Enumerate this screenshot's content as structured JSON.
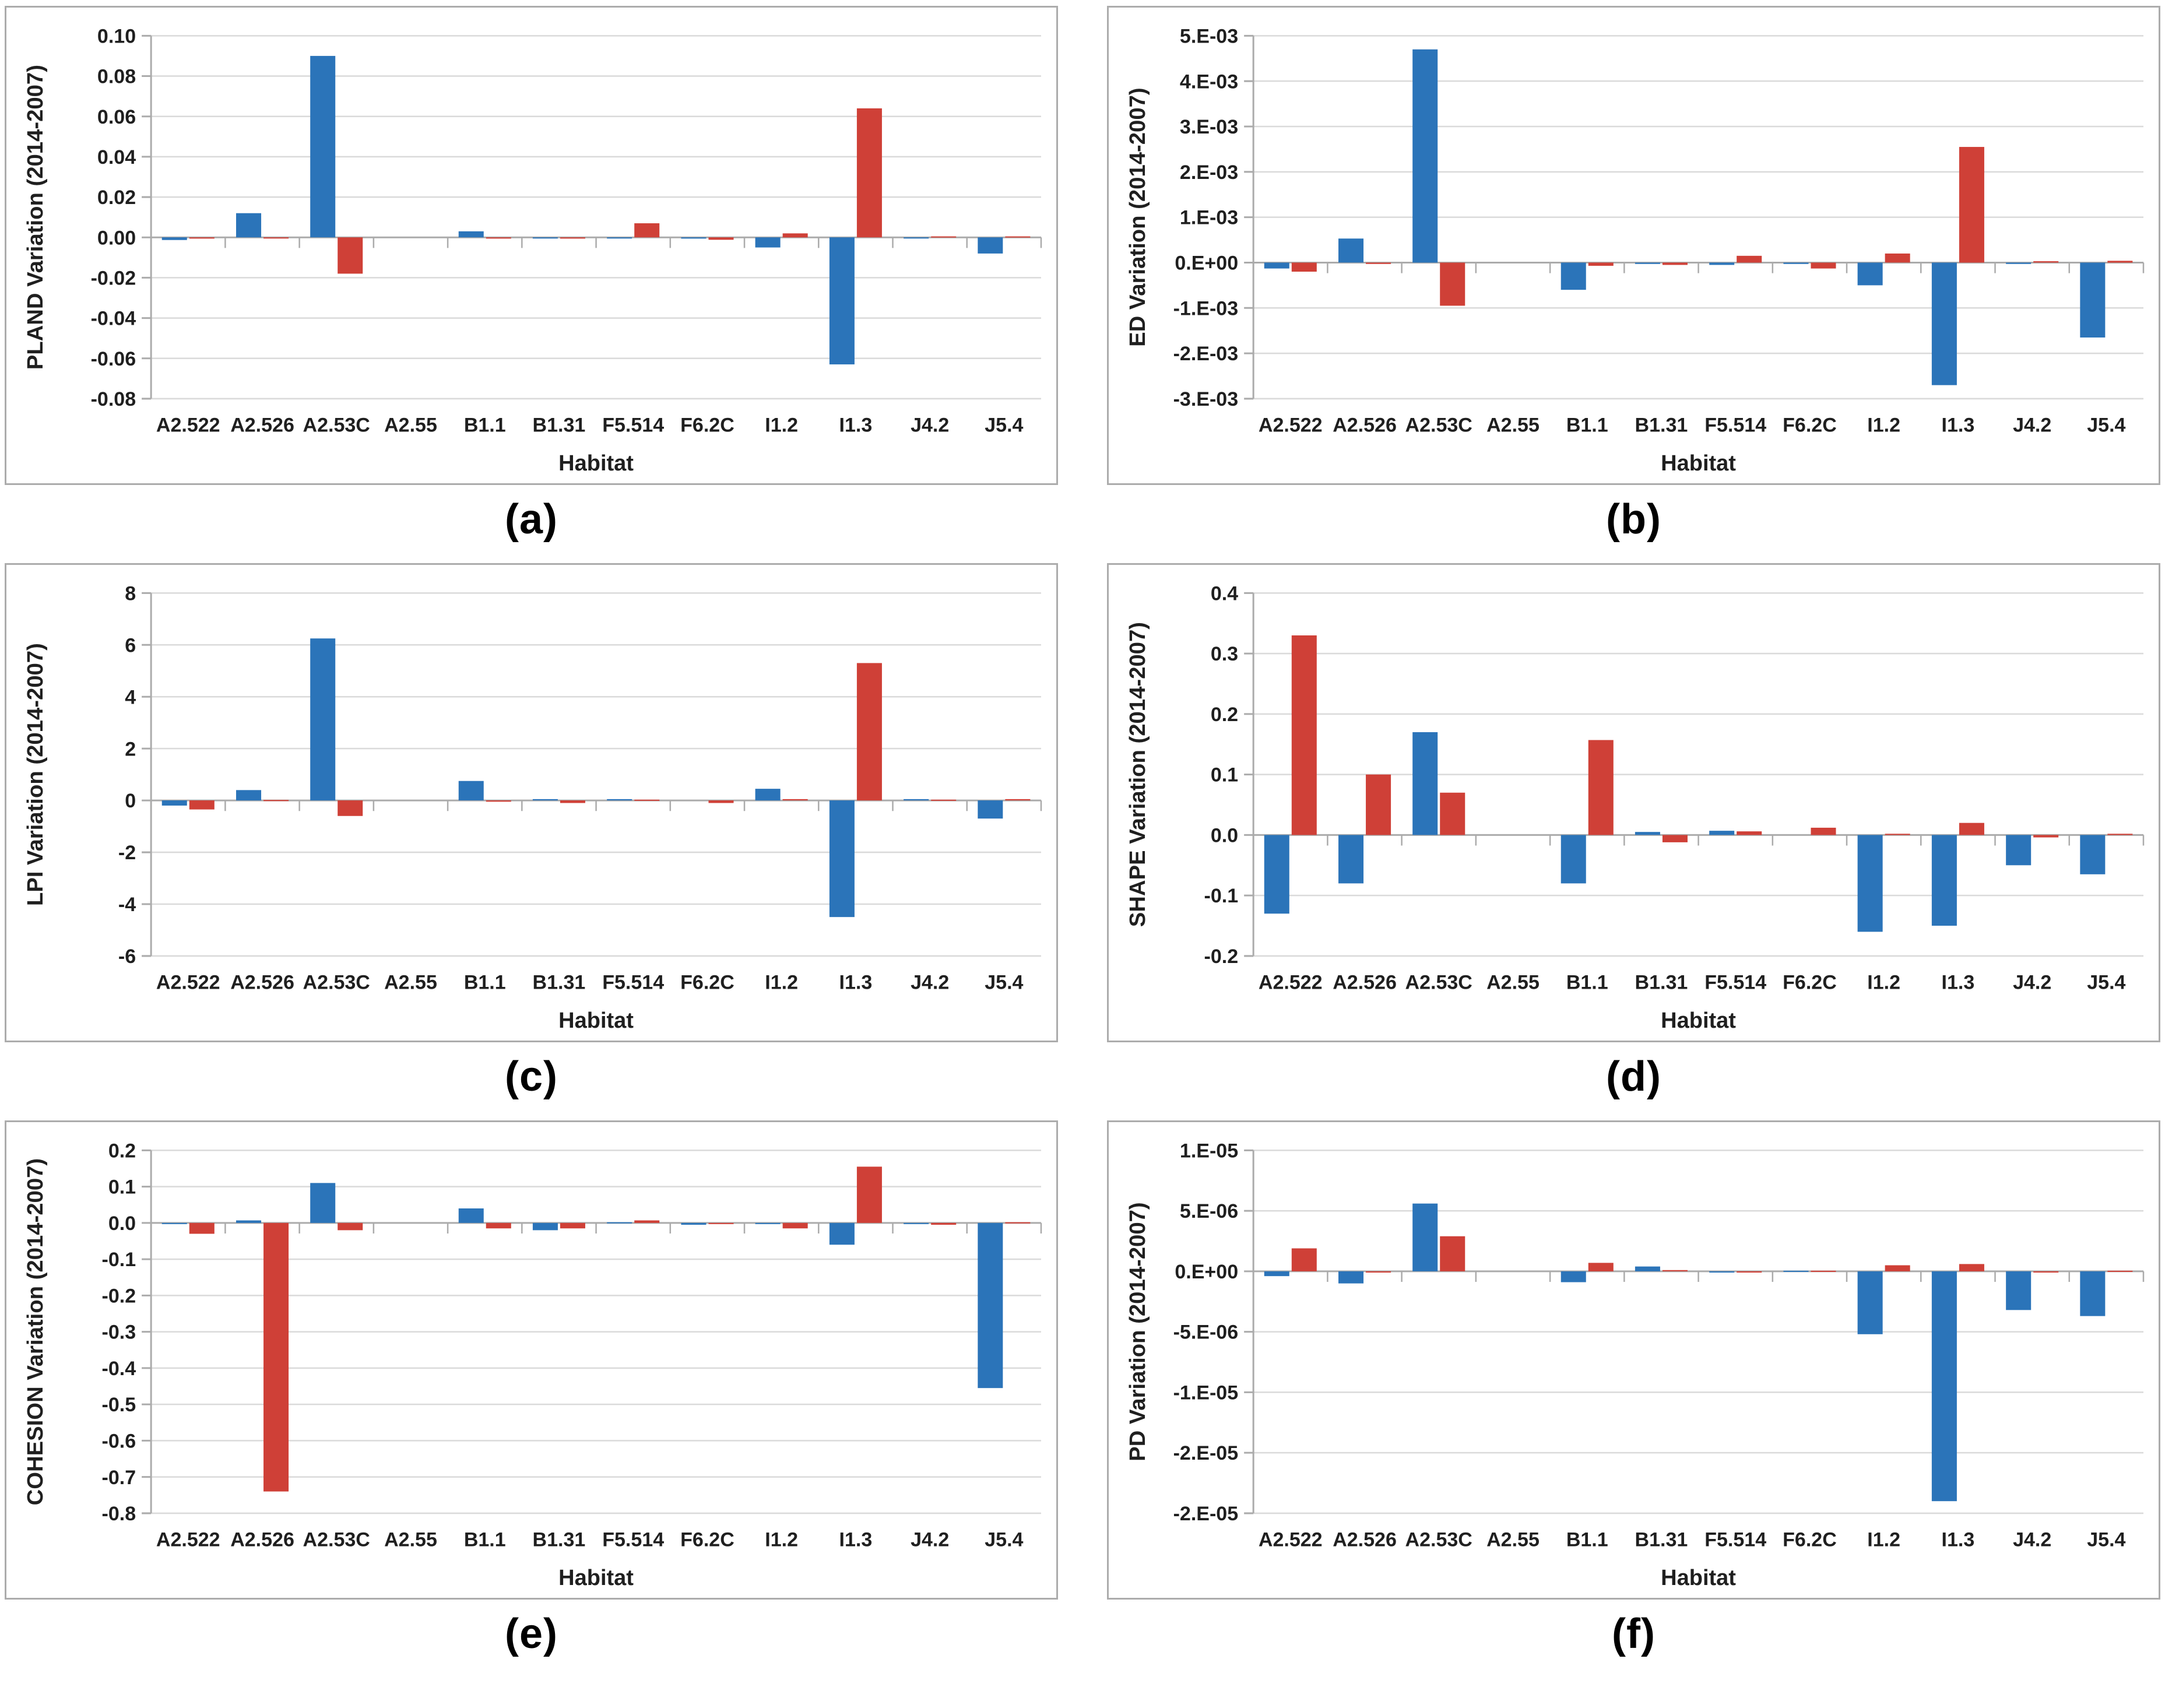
{
  "style": {
    "series_blue": "#2B74B9",
    "series_red": "#CF4037",
    "grid_color": "#DADADA",
    "axis_color": "#ABABAB",
    "text_color": "#1F1F1F",
    "card_border_color": "#ACACAC",
    "background": "#FFFFFF"
  },
  "chart_data": [
    {
      "panel": "(a)",
      "type": "bar",
      "title": "",
      "ylabel": "PLAND Variation (2014-2007)",
      "xlabel": "Habitat",
      "categories": [
        "A2.522",
        "A2.526",
        "A2.53C",
        "A2.55",
        "B1.1",
        "B1.31",
        "F5.514",
        "F6.2C",
        "I1.2",
        "I1.3",
        "J4.2",
        "J5.4"
      ],
      "series": [
        {
          "name": "blue",
          "color": "#2B74B9",
          "values": [
            -0.0013,
            0.012,
            0.09,
            0,
            0.003,
            -0.0003,
            -0.0003,
            -0.0006,
            -0.005,
            -0.063,
            -0.0003,
            -0.008
          ]
        },
        {
          "name": "red",
          "color": "#CF4037",
          "values": [
            -0.0006,
            -0.0002,
            -0.018,
            0,
            -0.0006,
            -0.0006,
            0.007,
            -0.0012,
            0.002,
            0.064,
            0.0005,
            0.0005
          ]
        }
      ],
      "ylim": [
        -0.08,
        0.1
      ],
      "yticks": [
        {
          "v": 0.1,
          "label": "0.10"
        },
        {
          "v": 0.08,
          "label": "0.08"
        },
        {
          "v": 0.06,
          "label": "0.06"
        },
        {
          "v": 0.04,
          "label": "0.04"
        },
        {
          "v": 0.02,
          "label": "0.02"
        },
        {
          "v": 0.0,
          "label": "0.00"
        },
        {
          "v": -0.02,
          "label": "-0.02"
        },
        {
          "v": -0.04,
          "label": "-0.04"
        },
        {
          "v": -0.06,
          "label": "-0.06"
        },
        {
          "v": -0.08,
          "label": "-0.08"
        }
      ],
      "grid": true,
      "legend": "none"
    },
    {
      "panel": "(b)",
      "type": "bar",
      "title": "",
      "ylabel": "ED Variation (2014-2007)",
      "xlabel": "Habitat",
      "categories": [
        "A2.522",
        "A2.526",
        "A2.53C",
        "A2.55",
        "B1.1",
        "B1.31",
        "F5.514",
        "F6.2C",
        "I1.2",
        "I1.3",
        "J4.2",
        "J5.4"
      ],
      "series": [
        {
          "name": "blue",
          "color": "#2B74B9",
          "values": [
            -0.00013,
            0.00053,
            0.0047,
            0,
            -0.0006,
            -3e-05,
            -5e-05,
            -3e-05,
            -0.0005,
            -0.0027,
            -3e-05,
            -0.00165
          ]
        },
        {
          "name": "red",
          "color": "#CF4037",
          "values": [
            -0.0002,
            -3e-05,
            -0.00095,
            0,
            -7e-05,
            -5e-05,
            0.00015,
            -0.00013,
            0.0002,
            0.00255,
            3e-05,
            4e-05
          ]
        }
      ],
      "ylim": [
        -0.003,
        0.005
      ],
      "yticks": [
        {
          "v": 0.005,
          "label": "5.E-03"
        },
        {
          "v": 0.004,
          "label": "4.E-03"
        },
        {
          "v": 0.003,
          "label": "3.E-03"
        },
        {
          "v": 0.002,
          "label": "2.E-03"
        },
        {
          "v": 0.001,
          "label": "1.E-03"
        },
        {
          "v": 0,
          "label": "0.E+00"
        },
        {
          "v": -0.001,
          "label": "-1.E-03"
        },
        {
          "v": -0.002,
          "label": "-2.E-03"
        },
        {
          "v": -0.003,
          "label": "-3.E-03"
        }
      ],
      "grid": true,
      "legend": "none"
    },
    {
      "panel": "(c)",
      "type": "bar",
      "title": "",
      "ylabel": "LPI Variation (2014-2007)",
      "xlabel": "Habitat",
      "categories": [
        "A2.522",
        "A2.526",
        "A2.53C",
        "A2.55",
        "B1.1",
        "B1.31",
        "F5.514",
        "F6.2C",
        "I1.2",
        "I1.3",
        "J4.2",
        "J5.4"
      ],
      "series": [
        {
          "name": "blue",
          "color": "#2B74B9",
          "values": [
            -0.2,
            0.4,
            6.25,
            0,
            0.75,
            0.05,
            0.05,
            0,
            0.45,
            -4.5,
            0.05,
            -0.7
          ]
        },
        {
          "name": "red",
          "color": "#CF4037",
          "values": [
            -0.35,
            0.02,
            -0.6,
            0,
            -0.05,
            -0.1,
            0.03,
            -0.1,
            0.05,
            5.3,
            0.03,
            0.05
          ]
        }
      ],
      "ylim": [
        -6,
        8
      ],
      "yticks": [
        {
          "v": 8,
          "label": "8"
        },
        {
          "v": 6,
          "label": "6"
        },
        {
          "v": 4,
          "label": "4"
        },
        {
          "v": 2,
          "label": "2"
        },
        {
          "v": 0,
          "label": "0"
        },
        {
          "v": -2,
          "label": "-2"
        },
        {
          "v": -4,
          "label": "-4"
        },
        {
          "v": -6,
          "label": "-6"
        }
      ],
      "grid": true,
      "legend": "none"
    },
    {
      "panel": "(d)",
      "type": "bar",
      "title": "",
      "ylabel": "SHAPE Variation (2014-2007)",
      "xlabel": "Habitat",
      "categories": [
        "A2.522",
        "A2.526",
        "A2.53C",
        "A2.55",
        "B1.1",
        "B1.31",
        "F5.514",
        "F6.2C",
        "I1.2",
        "I1.3",
        "J4.2",
        "J5.4"
      ],
      "series": [
        {
          "name": "blue",
          "color": "#2B74B9",
          "values": [
            -0.13,
            -0.08,
            0.17,
            0,
            -0.08,
            0.005,
            0.007,
            0,
            -0.16,
            -0.15,
            -0.05,
            -0.065
          ]
        },
        {
          "name": "red",
          "color": "#CF4037",
          "values": [
            0.33,
            0.1,
            0.07,
            0,
            0.157,
            -0.012,
            0.006,
            0.012,
            0.002,
            0.02,
            -0.004,
            0.002
          ]
        }
      ],
      "ylim": [
        -0.2,
        0.4
      ],
      "yticks": [
        {
          "v": 0.4,
          "label": "0.4"
        },
        {
          "v": 0.3,
          "label": "0.3"
        },
        {
          "v": 0.2,
          "label": "0.2"
        },
        {
          "v": 0.1,
          "label": "0.1"
        },
        {
          "v": 0.0,
          "label": "0.0"
        },
        {
          "v": -0.1,
          "label": "-0.1"
        },
        {
          "v": -0.2,
          "label": "-0.2"
        }
      ],
      "grid": true,
      "legend": "none"
    },
    {
      "panel": "(e)",
      "type": "bar",
      "title": "",
      "ylabel": "COHESION Variation (2014-2007)",
      "xlabel": "Habitat",
      "categories": [
        "A2.522",
        "A2.526",
        "A2.53C",
        "A2.55",
        "B1.1",
        "B1.31",
        "F5.514",
        "F6.2C",
        "I1.2",
        "I1.3",
        "J4.2",
        "J5.4"
      ],
      "series": [
        {
          "name": "blue",
          "color": "#2B74B9",
          "values": [
            -0.002,
            0.007,
            0.11,
            0,
            0.04,
            -0.02,
            0.002,
            -0.005,
            -0.002,
            -0.06,
            -0.002,
            -0.455
          ]
        },
        {
          "name": "red",
          "color": "#CF4037",
          "values": [
            -0.03,
            -0.74,
            -0.02,
            0,
            -0.015,
            -0.015,
            0.007,
            -0.002,
            -0.015,
            0.155,
            -0.005,
            0.002
          ]
        }
      ],
      "ylim": [
        -0.8,
        0.2
      ],
      "yticks": [
        {
          "v": 0.2,
          "label": "0.2"
        },
        {
          "v": 0.1,
          "label": "0.1"
        },
        {
          "v": 0.0,
          "label": "0.0"
        },
        {
          "v": -0.1,
          "label": "-0.1"
        },
        {
          "v": -0.2,
          "label": "-0.2"
        },
        {
          "v": -0.3,
          "label": "-0.3"
        },
        {
          "v": -0.4,
          "label": "-0.4"
        },
        {
          "v": -0.5,
          "label": "-0.5"
        },
        {
          "v": -0.6,
          "label": "-0.6"
        },
        {
          "v": -0.7,
          "label": "-0.7"
        },
        {
          "v": -0.8,
          "label": "-0.8"
        }
      ],
      "grid": true,
      "legend": "none"
    },
    {
      "panel": "(f)",
      "type": "bar",
      "title": "",
      "ylabel": "PD Variation (2014-2007)",
      "xlabel": "Habitat",
      "categories": [
        "A2.522",
        "A2.526",
        "A2.53C",
        "A2.55",
        "B1.1",
        "B1.31",
        "F5.514",
        "F6.2C",
        "I1.2",
        "I1.3",
        "J4.2",
        "J5.4"
      ],
      "series": [
        {
          "name": "blue",
          "color": "#2B74B9",
          "values": [
            -4e-07,
            -1e-06,
            5.6e-06,
            0,
            -9e-07,
            4e-07,
            -1e-07,
            5e-08,
            -5.2e-06,
            -1.9e-05,
            -3.2e-06,
            -3.7e-06
          ]
        },
        {
          "name": "red",
          "color": "#CF4037",
          "values": [
            1.9e-06,
            -1e-07,
            2.9e-06,
            0,
            7e-07,
            1e-07,
            -1e-07,
            5e-08,
            5e-07,
            6e-07,
            -1e-07,
            5e-08
          ]
        }
      ],
      "ylim": [
        -2e-05,
        1e-05
      ],
      "yticks": [
        {
          "v": 1e-05,
          "label": "1.E-05"
        },
        {
          "v": 5e-06,
          "label": "5.E-06"
        },
        {
          "v": 0,
          "label": "0.E+00"
        },
        {
          "v": -5e-06,
          "label": "-5.E-06"
        },
        {
          "v": -1e-05,
          "label": "-1.E-05"
        },
        {
          "v": -1.5e-05,
          "label": "-2.E-05"
        },
        {
          "v": -2e-05,
          "label": "-2.E-05"
        }
      ],
      "grid": true,
      "legend": "none"
    }
  ]
}
